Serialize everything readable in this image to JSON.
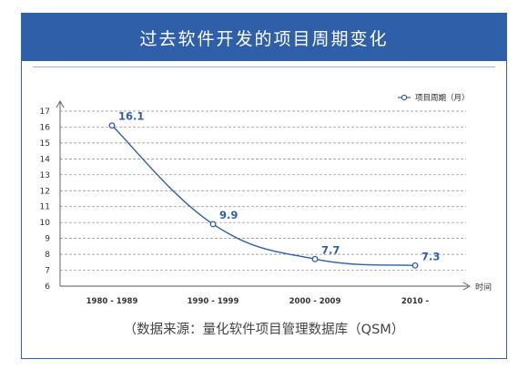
{
  "header": {
    "title": "过去软件开发的项目周期变化"
  },
  "footer": {
    "source": "（数据来源：量化软件项目管理数据库（QSM）"
  },
  "colors": {
    "accent": "#2f5fa8",
    "line": "#2f5fa8"
  },
  "chart_data": {
    "type": "line",
    "title": "过去软件开发的项目周期变化",
    "xlabel": "时间",
    "ylabel": "",
    "categories": [
      "1980 - 1989",
      "1990 - 1999",
      "2000 - 2009",
      "2010 -"
    ],
    "series": [
      {
        "name": "项目周期（月）",
        "values": [
          16.1,
          9.9,
          7.7,
          7.3
        ]
      }
    ],
    "data_labels": [
      "16.1",
      "9.9",
      "7.7",
      "7.3"
    ],
    "ylim": [
      6,
      17
    ],
    "yticks": [
      6,
      7,
      8,
      9,
      10,
      11,
      12,
      13,
      14,
      15,
      16,
      17
    ],
    "grid": true,
    "legend": "top-right"
  }
}
